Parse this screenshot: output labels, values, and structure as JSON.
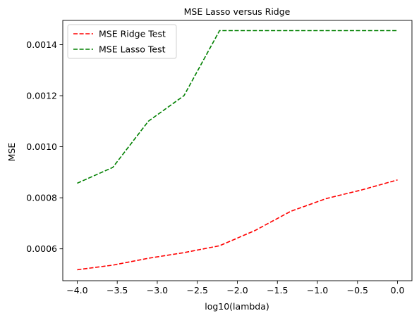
{
  "chart_data": {
    "type": "line",
    "title": "MSE Lasso versus Ridge",
    "xlabel": "log10(lambda)",
    "ylabel": "MSE",
    "xlim": [
      -4.18,
      0.18
    ],
    "ylim": [
      0.000475,
      0.001495
    ],
    "xticks": [
      -4.0,
      -3.5,
      -3.0,
      -2.5,
      -2.0,
      -1.5,
      -1.0,
      -0.5,
      0.0
    ],
    "xtick_labels": [
      "−4.0",
      "−3.5",
      "−3.0",
      "−2.5",
      "−2.0",
      "−1.5",
      "−1.0",
      "−0.5",
      "0.0"
    ],
    "yticks": [
      0.0006,
      0.0008,
      0.001,
      0.0012,
      0.0014
    ],
    "ytick_labels": [
      "0.0006",
      "0.0008",
      "0.0010",
      "0.0012",
      "0.0014"
    ],
    "grid": false,
    "legend_position": "upper-left",
    "x": [
      -4.0,
      -3.5556,
      -3.1111,
      -2.6667,
      -2.2222,
      -1.7778,
      -1.3333,
      -0.8889,
      -0.4444,
      0.0
    ],
    "series": [
      {
        "name": "MSE Ridge Test",
        "color": "#ff0000",
        "style": "dashed",
        "values": [
          0.000518,
          0.000536,
          0.000563,
          0.000585,
          0.000612,
          0.000672,
          0.000747,
          0.000797,
          0.000831,
          0.00087
        ]
      },
      {
        "name": "MSE Lasso Test",
        "color": "#008000",
        "style": "dashed",
        "values": [
          0.000857,
          0.000919,
          0.0011,
          0.0012,
          0.001455,
          0.001455,
          0.001455,
          0.001455,
          0.001455,
          0.001455
        ]
      }
    ]
  }
}
